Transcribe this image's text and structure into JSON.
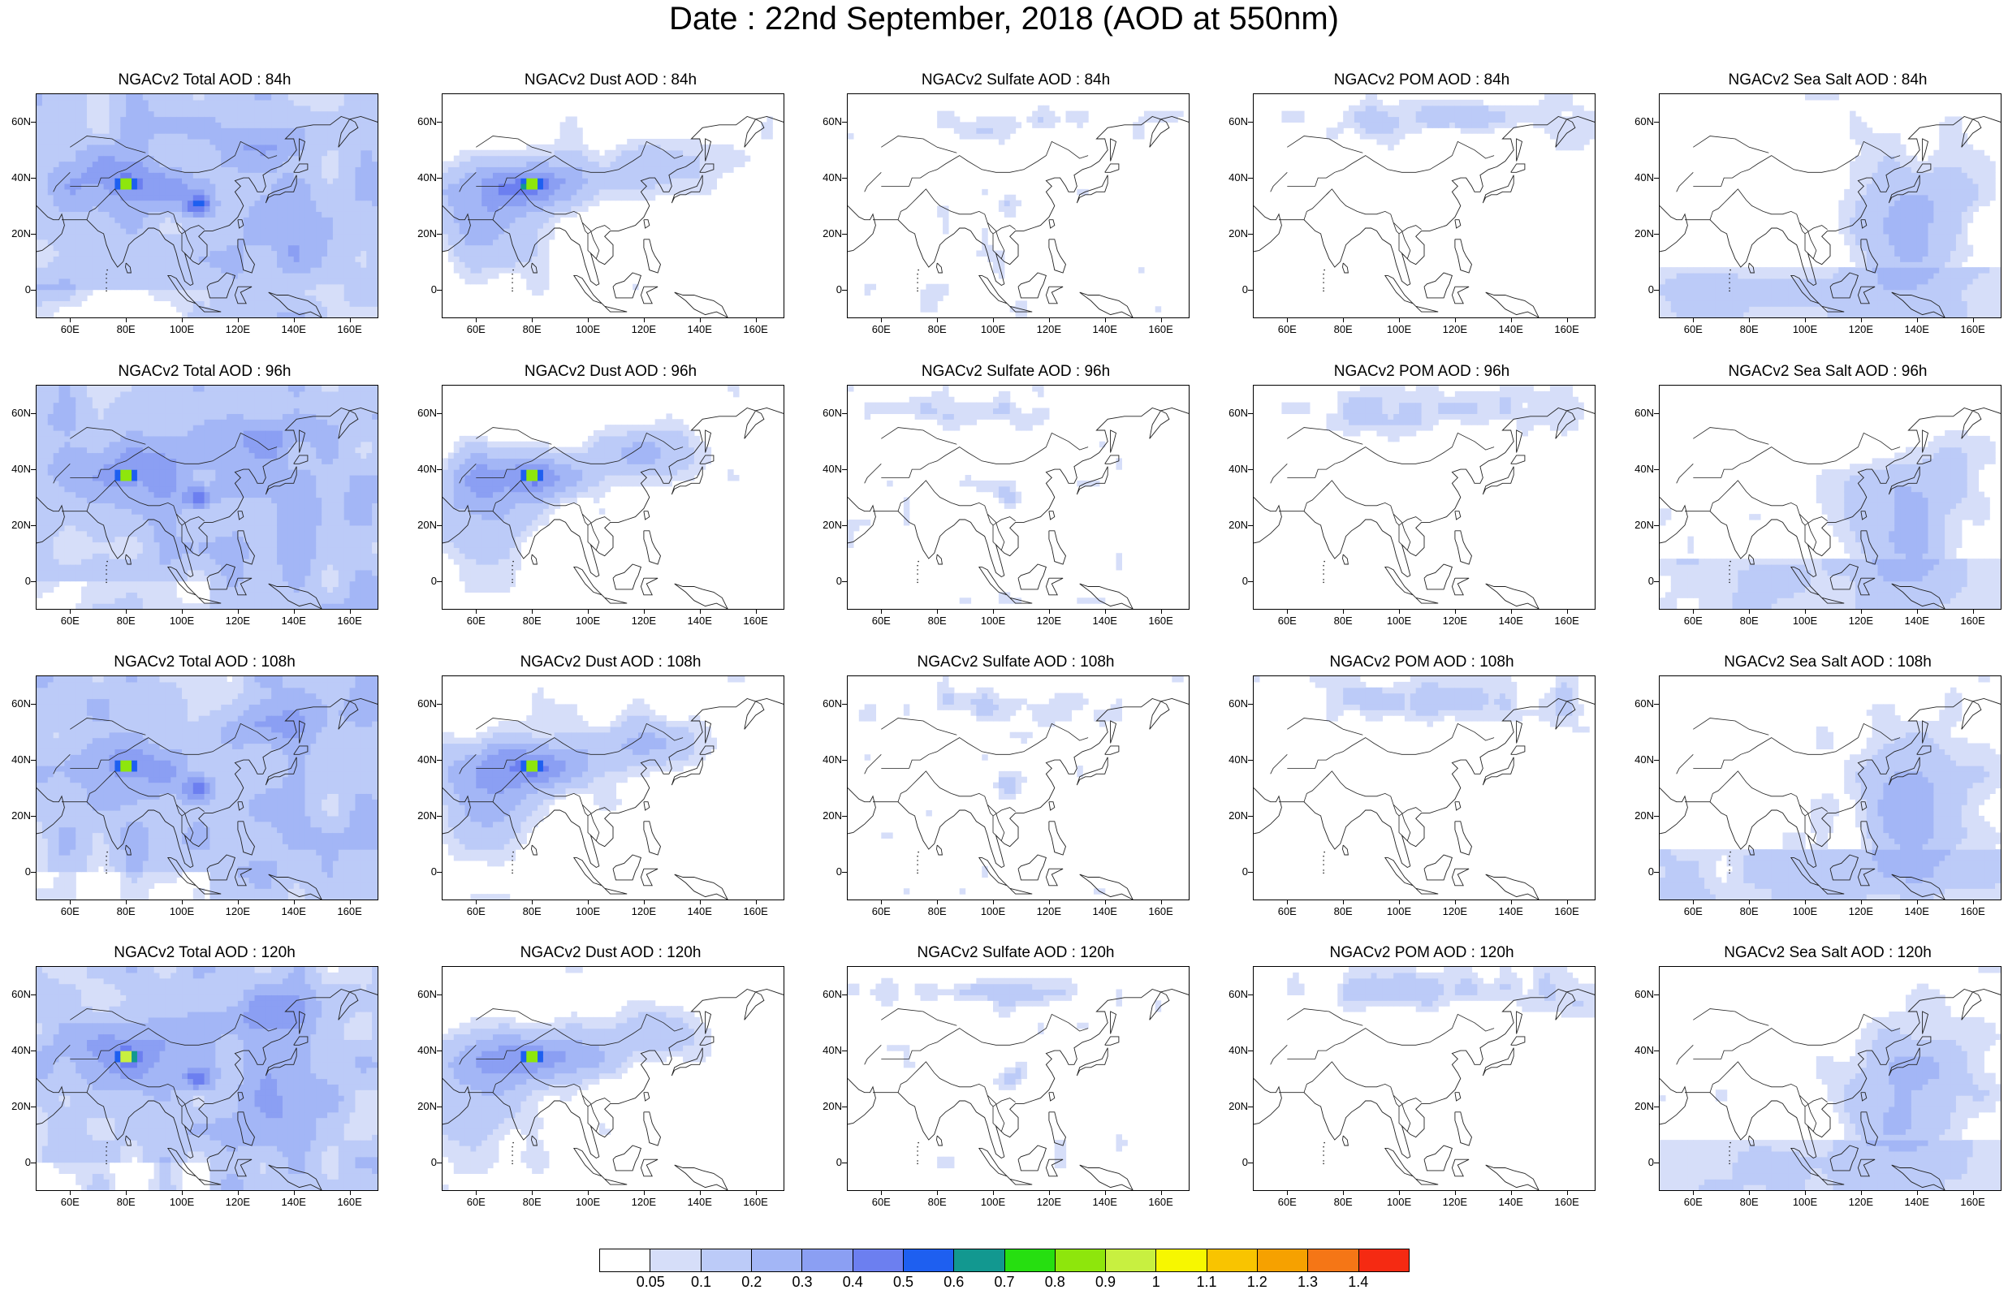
{
  "title": "Date : 22nd September, 2018 (AOD at 550nm)",
  "panels": [
    {
      "title": "NGACv2 Total AOD : 84h",
      "species": "total",
      "hour": 84
    },
    {
      "title": "NGACv2 Dust AOD : 84h",
      "species": "dust",
      "hour": 84
    },
    {
      "title": "NGACv2 Sulfate AOD : 84h",
      "species": "sulfate",
      "hour": 84
    },
    {
      "title": "NGACv2 POM AOD : 84h",
      "species": "pom",
      "hour": 84
    },
    {
      "title": "NGACv2 Sea Salt AOD : 84h",
      "species": "seasalt",
      "hour": 84
    },
    {
      "title": "NGACv2 Total AOD : 96h",
      "species": "total",
      "hour": 96
    },
    {
      "title": "NGACv2 Dust AOD : 96h",
      "species": "dust",
      "hour": 96
    },
    {
      "title": "NGACv2 Sulfate AOD : 96h",
      "species": "sulfate",
      "hour": 96
    },
    {
      "title": "NGACv2 POM AOD : 96h",
      "species": "pom",
      "hour": 96
    },
    {
      "title": "NGACv2 Sea Salt AOD : 96h",
      "species": "seasalt",
      "hour": 96
    },
    {
      "title": "NGACv2 Total AOD : 108h",
      "species": "total",
      "hour": 108
    },
    {
      "title": "NGACv2 Dust AOD : 108h",
      "species": "dust",
      "hour": 108
    },
    {
      "title": "NGACv2 Sulfate AOD : 108h",
      "species": "sulfate",
      "hour": 108
    },
    {
      "title": "NGACv2 POM AOD : 108h",
      "species": "pom",
      "hour": 108
    },
    {
      "title": "NGACv2 Sea Salt AOD : 108h",
      "species": "seasalt",
      "hour": 108
    },
    {
      "title": "NGACv2 Total AOD : 120h",
      "species": "total",
      "hour": 120
    },
    {
      "title": "NGACv2 Dust AOD : 120h",
      "species": "dust",
      "hour": 120
    },
    {
      "title": "NGACv2 Sulfate AOD : 120h",
      "species": "sulfate",
      "hour": 120
    },
    {
      "title": "NGACv2 POM AOD : 120h",
      "species": "pom",
      "hour": 120
    },
    {
      "title": "NGACv2 Sea Salt  AOD : 120h",
      "species": "seasalt",
      "hour": 120
    }
  ],
  "axes": {
    "lon_range": [
      48,
      170
    ],
    "lat_range": [
      -10,
      70
    ],
    "lon_ticks": [
      "60E",
      "80E",
      "100E",
      "120E",
      "140E",
      "160E"
    ],
    "lat_ticks": [
      "60N",
      "40N",
      "20N",
      "0"
    ]
  },
  "colorbar": {
    "labels": [
      "0.05",
      "0.1",
      "0.2",
      "0.3",
      "0.4",
      "0.5",
      "0.6",
      "0.7",
      "0.8",
      "0.9",
      "1",
      "1.1",
      "1.2",
      "1.3",
      "1.4"
    ],
    "colors": [
      "#ffffff",
      "#d6def9",
      "#bccbf8",
      "#a3b6f6",
      "#8b9ff3",
      "#6c7ff0",
      "#1e5ff0",
      "#129890",
      "#26df10",
      "#8ee60c",
      "#c8f040",
      "#f7f700",
      "#f9c400",
      "#f6a100",
      "#f57616",
      "#f52a12"
    ]
  }
}
